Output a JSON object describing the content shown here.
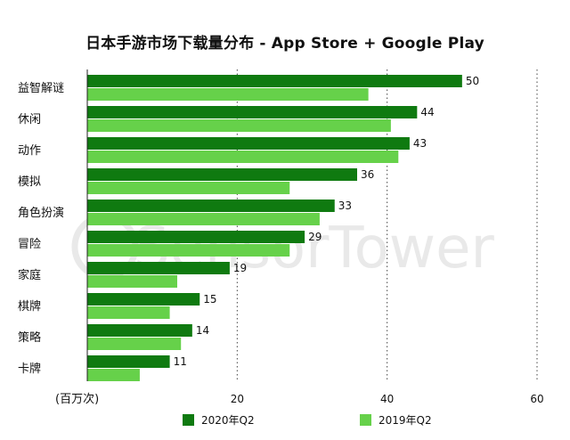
{
  "chart_data": {
    "type": "bar",
    "orientation": "horizontal",
    "title": "日本手游市场下载量分布 - App Store + Google Play",
    "unit_label": "(百万次)",
    "categories": [
      "益智解谜",
      "休闲",
      "动作",
      "模拟",
      "角色扮演",
      "冒险",
      "家庭",
      "棋牌",
      "策略",
      "卡牌"
    ],
    "series": [
      {
        "name": "2020年Q2",
        "color": "#0f7a10",
        "values": [
          50,
          44,
          43,
          36,
          33,
          29,
          19,
          15,
          14,
          11
        ]
      },
      {
        "name": "2019年Q2",
        "color": "#66d14a",
        "values": [
          37.5,
          40.5,
          41.5,
          27,
          31,
          27,
          12,
          11,
          12.5,
          7
        ]
      }
    ],
    "value_labels_series": "2020年Q2",
    "xlim": [
      0,
      60
    ],
    "xticks": [
      20,
      40,
      60
    ],
    "grid": "vertical-dotted",
    "legend_position": "bottom"
  },
  "watermark": {
    "text": "SensorTower",
    "color": "#e9e9e9"
  }
}
